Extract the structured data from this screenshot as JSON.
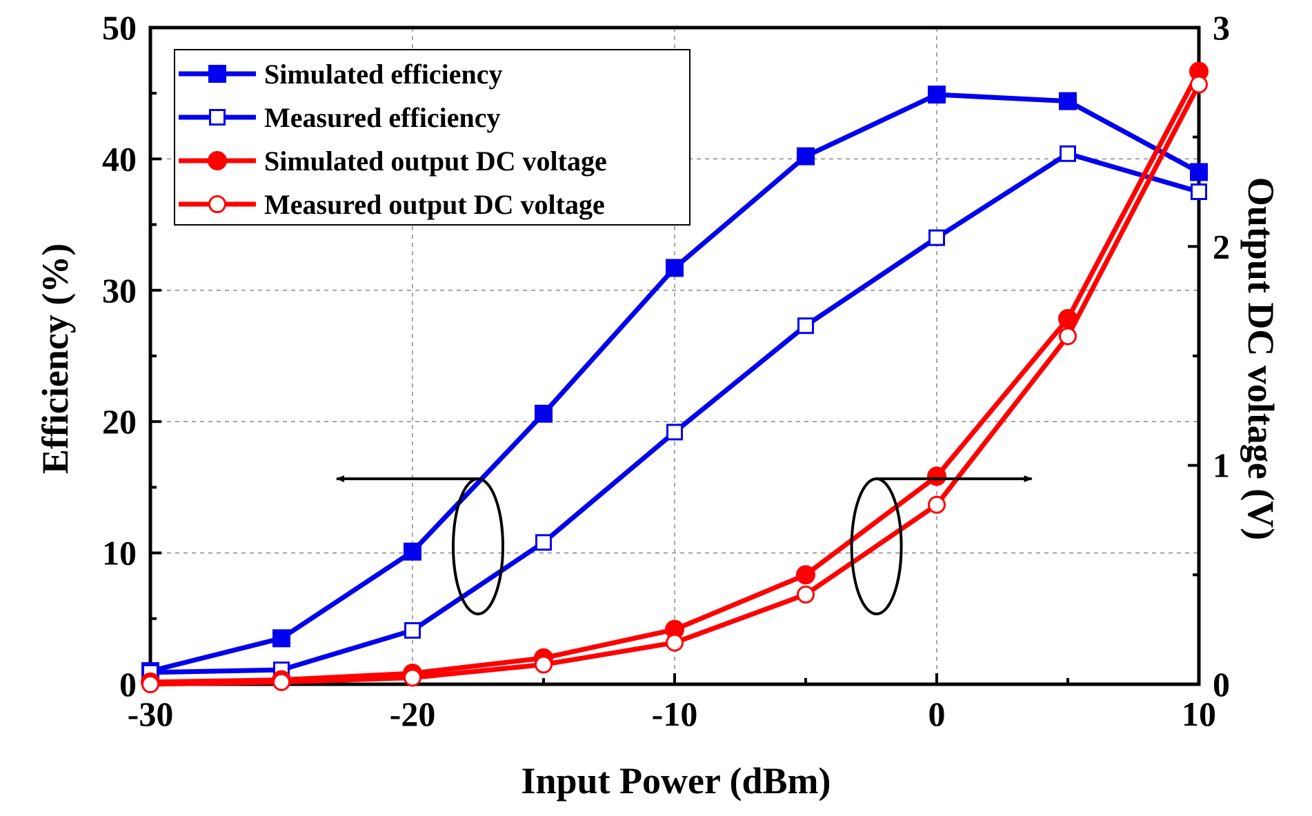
{
  "chart_data": {
    "type": "line",
    "title": "",
    "xlabel": "Input Power (dBm)",
    "ylabel": "Efficiency (%)",
    "y2label": "Output DC voltage (V)",
    "xlim": [
      -30,
      10
    ],
    "ylim": [
      0,
      50
    ],
    "y2lim": [
      0,
      3
    ],
    "xticks": [
      "-30",
      "-20",
      "-10",
      "0",
      "10"
    ],
    "xtick_values": [
      -30,
      -20,
      -10,
      0,
      10
    ],
    "yticks": [
      "0",
      "10",
      "20",
      "30",
      "40",
      "50"
    ],
    "ytick_values": [
      0,
      10,
      20,
      30,
      40,
      50
    ],
    "y2ticks": [
      "0",
      "1",
      "2",
      "3"
    ],
    "y2tick_values": [
      0,
      1,
      2,
      3
    ],
    "grid": true,
    "legend_position": "top-left",
    "x": [
      -30,
      -25,
      -20,
      -15,
      -10,
      -5,
      0,
      5,
      10
    ],
    "series": [
      {
        "name": "Simulated efficiency",
        "axis": "left",
        "color": "#0000ee",
        "marker": "square-filled",
        "values": [
          1.0,
          3.5,
          10.1,
          20.6,
          31.7,
          40.2,
          44.9,
          44.4,
          39.0
        ]
      },
      {
        "name": "Measured efficiency",
        "axis": "left",
        "color": "#0000ee",
        "marker": "square-open",
        "values": [
          0.9,
          1.1,
          4.1,
          10.8,
          19.2,
          27.3,
          34.0,
          40.4,
          37.5
        ]
      },
      {
        "name": "Simulated output DC voltage",
        "axis": "right",
        "color": "#ff0000",
        "marker": "circle-filled",
        "values": [
          0.01,
          0.02,
          0.05,
          0.12,
          0.25,
          0.5,
          0.95,
          1.67,
          2.8
        ]
      },
      {
        "name": "Measured output DC voltage",
        "axis": "right",
        "color": "#ff0000",
        "marker": "circle-open",
        "values": [
          0.0,
          0.01,
          0.03,
          0.09,
          0.19,
          0.41,
          0.82,
          1.59,
          2.74
        ]
      }
    ],
    "annotations": [
      {
        "type": "ellipse-arrow",
        "points_to": "left-axis",
        "near_x": -17.5,
        "near_y": 10.5
      },
      {
        "type": "ellipse-arrow",
        "points_to": "right-axis",
        "near_x": -2.3,
        "near_y": 10.5
      }
    ]
  }
}
